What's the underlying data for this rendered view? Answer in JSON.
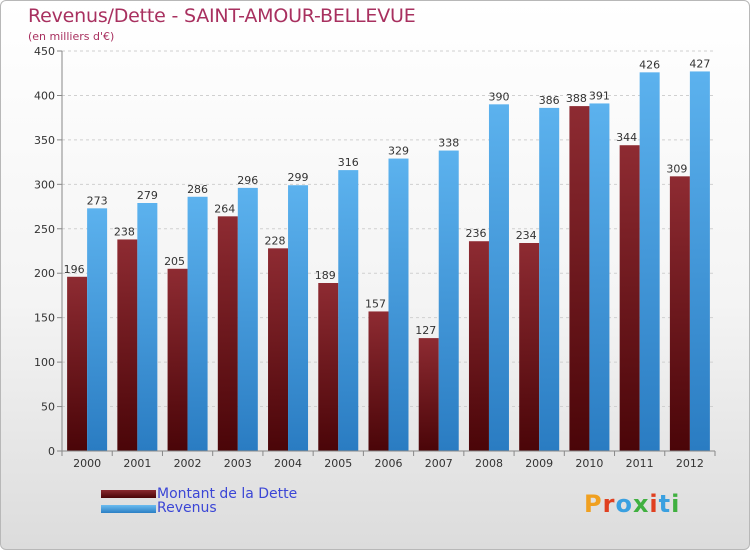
{
  "header": {
    "title": "Revenus/Dette - SAINT-AMOUR-BELLEVUE",
    "subtitle": "(en milliers d'€)"
  },
  "logo": {
    "text": "Proxiti",
    "colors": [
      "#f0a020",
      "#e04020",
      "#3aa0e0",
      "#40b040",
      "#e04020",
      "#3aa0e0",
      "#40b040"
    ]
  },
  "chart_data": {
    "type": "bar",
    "categories": [
      "2000",
      "2001",
      "2002",
      "2003",
      "2004",
      "2005",
      "2006",
      "2007",
      "2008",
      "2009",
      "2010",
      "2011",
      "2012"
    ],
    "series": [
      {
        "name": "Montant de la Dette",
        "color": "#7a1d22",
        "values": [
          196,
          238,
          205,
          264,
          228,
          189,
          157,
          127,
          236,
          234,
          388,
          344,
          309
        ]
      },
      {
        "name": "Revenus",
        "color": "#4aa3e6",
        "values": [
          273,
          279,
          286,
          296,
          299,
          316,
          329,
          338,
          390,
          386,
          391,
          426,
          427
        ]
      }
    ],
    "ylim": [
      0,
      450
    ],
    "yticks": [
      0,
      50,
      100,
      150,
      200,
      250,
      300,
      350,
      400,
      450
    ],
    "grid": true,
    "legend": "bottom-left"
  }
}
